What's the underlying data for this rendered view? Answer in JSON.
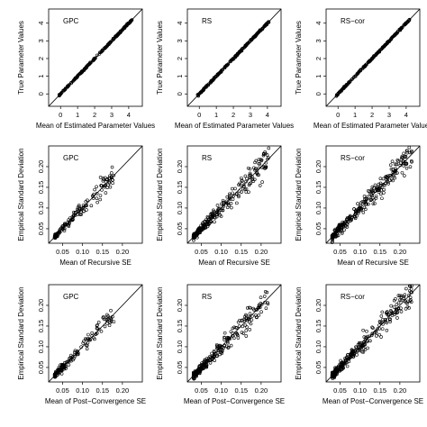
{
  "colors": {
    "background": "#ffffff",
    "ink": "#000000"
  },
  "chart_data": [
    {
      "type": "scatter",
      "panel_label": "GPC",
      "xlabel": "Mean of Estimated Parameter Values",
      "ylabel": "True Parameter Values",
      "xlim": [
        -0.7,
        4.8
      ],
      "ylim": [
        -0.7,
        4.8
      ],
      "xticks": [
        "0",
        "1",
        "2",
        "3",
        "4"
      ],
      "yticks": [
        "0",
        "1",
        "2",
        "3",
        "4"
      ],
      "reference_line": "y = x",
      "dist": "line",
      "n_points": 220,
      "spread": 0.02
    },
    {
      "type": "scatter",
      "panel_label": "RS",
      "xlabel": "Mean of Estimated Parameter Values",
      "ylabel": "True Parameter Values",
      "xlim": [
        -0.7,
        4.8
      ],
      "ylim": [
        -0.7,
        4.8
      ],
      "xticks": [
        "0",
        "1",
        "2",
        "3",
        "4"
      ],
      "yticks": [
        "0",
        "1",
        "2",
        "3",
        "4"
      ],
      "reference_line": "y = x",
      "dist": "line",
      "n_points": 220,
      "spread": 0.02
    },
    {
      "type": "scatter",
      "panel_label": "RS−cor",
      "xlabel": "Mean of Estimated Parameter Values",
      "ylabel": "True Parameter Values",
      "xlim": [
        -0.7,
        4.8
      ],
      "ylim": [
        -0.7,
        4.8
      ],
      "xticks": [
        "0",
        "1",
        "2",
        "3",
        "4"
      ],
      "yticks": [
        "0",
        "1",
        "2",
        "3",
        "4"
      ],
      "reference_line": "y = x",
      "dist": "line",
      "n_points": 220,
      "spread": 0.02
    },
    {
      "type": "scatter",
      "panel_label": "GPC",
      "xlabel": "Mean of Recursive SE",
      "ylabel": "Empirical Standard Deviation",
      "xlim": [
        0.015,
        0.25
      ],
      "ylim": [
        0.015,
        0.25
      ],
      "xticks": [
        "0.05",
        "0.10",
        "0.15",
        "0.20"
      ],
      "yticks": [
        "0.05",
        "0.10",
        "0.15",
        "0.20"
      ],
      "reference_line": "y = x",
      "dist": "se",
      "n_points": 150,
      "spread": 0.07,
      "xmax": 0.18
    },
    {
      "type": "scatter",
      "panel_label": "RS",
      "xlabel": "Mean of Recursive SE",
      "ylabel": "Empirical Standard Deviation",
      "xlim": [
        0.015,
        0.25
      ],
      "ylim": [
        0.015,
        0.25
      ],
      "xticks": [
        "0.05",
        "0.10",
        "0.15",
        "0.20"
      ],
      "yticks": [
        "0.05",
        "0.10",
        "0.15",
        "0.20"
      ],
      "reference_line": "y = x",
      "dist": "se",
      "n_points": 260,
      "spread": 0.08,
      "xmax": 0.22
    },
    {
      "type": "scatter",
      "panel_label": "RS−cor",
      "xlabel": "Mean of Recursive SE",
      "ylabel": "Empirical Standard Deviation",
      "xlim": [
        0.015,
        0.25
      ],
      "ylim": [
        0.015,
        0.25
      ],
      "xticks": [
        "0.05",
        "0.10",
        "0.15",
        "0.20"
      ],
      "yticks": [
        "0.05",
        "0.10",
        "0.15",
        "0.20"
      ],
      "reference_line": "y = x",
      "dist": "se",
      "n_points": 300,
      "spread": 0.08,
      "xmax": 0.23
    },
    {
      "type": "scatter",
      "panel_label": "GPC",
      "xlabel": "Mean of Post−Convergence SE",
      "ylabel": "Empirical Standard Deviation",
      "xlim": [
        0.015,
        0.25
      ],
      "ylim": [
        0.015,
        0.25
      ],
      "xticks": [
        "0.05",
        "0.10",
        "0.15",
        "0.20"
      ],
      "yticks": [
        "0.05",
        "0.10",
        "0.15",
        "0.20"
      ],
      "reference_line": "y = x",
      "dist": "se",
      "n_points": 150,
      "spread": 0.07,
      "xmax": 0.18
    },
    {
      "type": "scatter",
      "panel_label": "RS",
      "xlabel": "Mean of Post−Convergence SE",
      "ylabel": "Empirical Standard Deviation",
      "xlim": [
        0.015,
        0.25
      ],
      "ylim": [
        0.015,
        0.25
      ],
      "xticks": [
        "0.05",
        "0.10",
        "0.15",
        "0.20"
      ],
      "yticks": [
        "0.05",
        "0.10",
        "0.15",
        "0.20"
      ],
      "reference_line": "y = x",
      "dist": "se",
      "n_points": 260,
      "spread": 0.08,
      "xmax": 0.22
    },
    {
      "type": "scatter",
      "panel_label": "RS−cor",
      "xlabel": "Mean of Post−Convergence SE",
      "ylabel": "Empirical Standard Deviation",
      "xlim": [
        0.015,
        0.25
      ],
      "ylim": [
        0.015,
        0.25
      ],
      "xticks": [
        "0.05",
        "0.10",
        "0.15",
        "0.20"
      ],
      "yticks": [
        "0.05",
        "0.10",
        "0.15",
        "0.20"
      ],
      "reference_line": "y = x",
      "dist": "se",
      "n_points": 300,
      "spread": 0.08,
      "xmax": 0.23
    }
  ]
}
